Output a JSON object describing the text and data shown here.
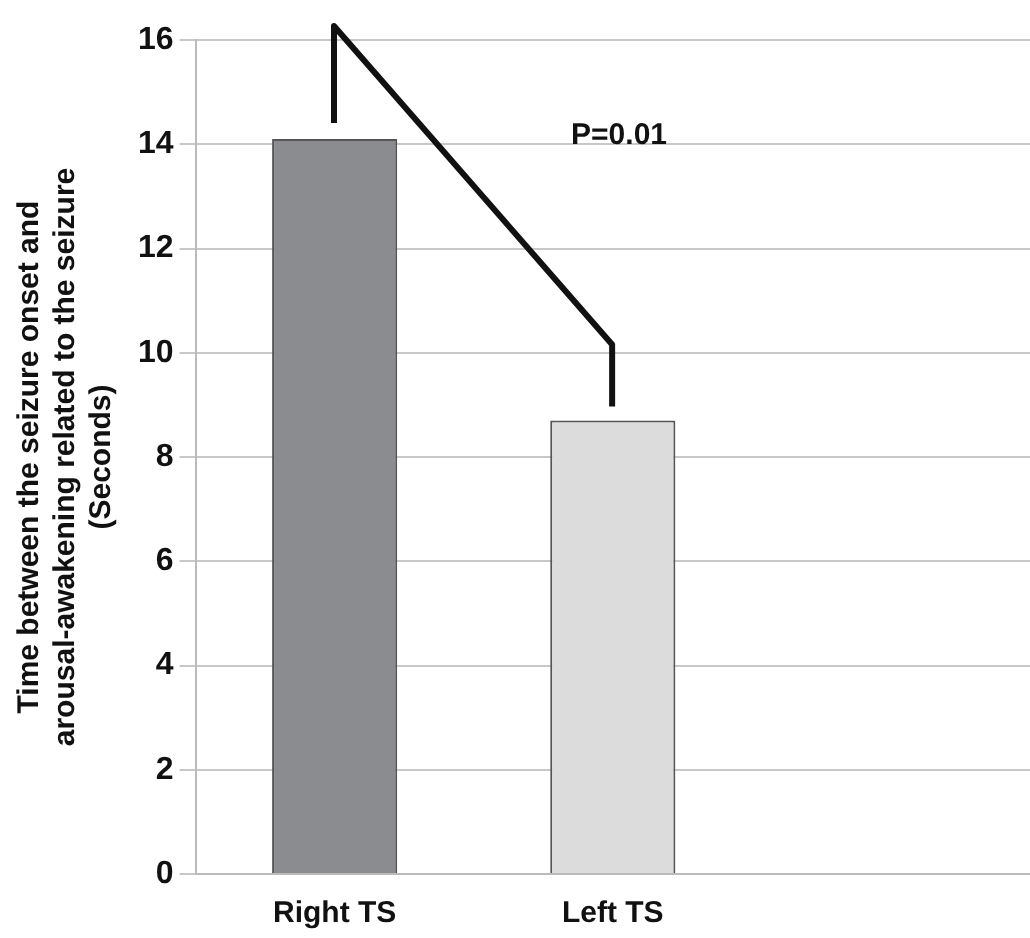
{
  "chart_data": {
    "type": "bar",
    "ylabel": "Time between the seizure onset and arousal-awakening related to the seizure (Seconds)",
    "categories": [
      "Right TS",
      "Left TS",
      null
    ],
    "series": [
      {
        "colors": [
          "#8a8c8f",
          "#dcdcdc",
          "#dcdcdc"
        ],
        "values": [
          14.1,
          8.7,
          null
        ]
      }
    ],
    "ylim": [
      0,
      16
    ],
    "yticks": [
      0,
      2,
      4,
      6,
      8,
      10,
      12,
      14,
      16
    ],
    "grid": "y",
    "legend": false,
    "annotations": [
      "P=0.01"
    ]
  }
}
